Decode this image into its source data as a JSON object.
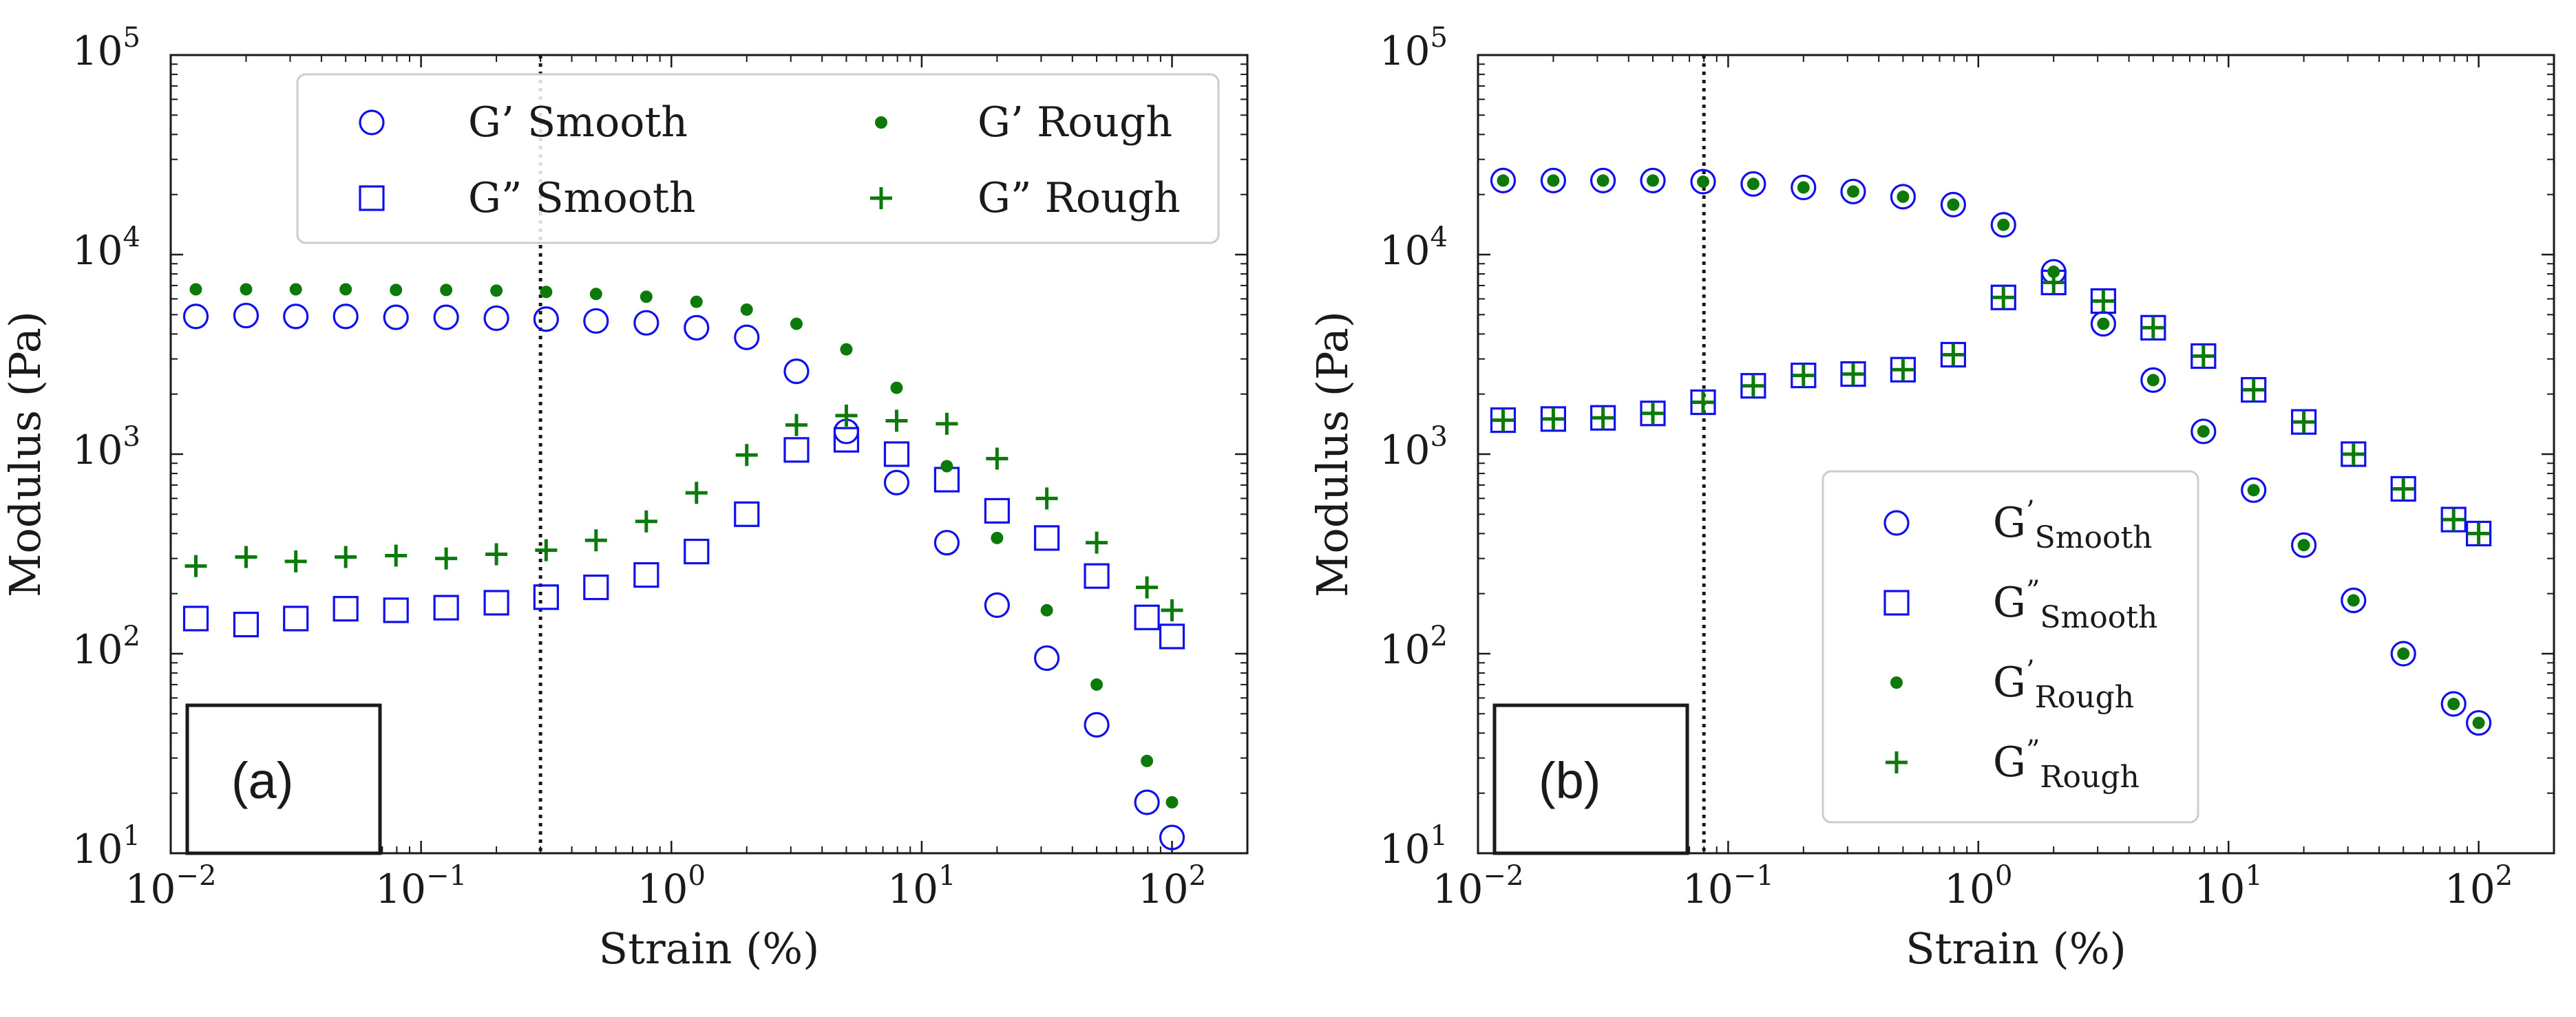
{
  "colors": {
    "smooth": "#1010ee",
    "rough": "#0b7a0b",
    "axis": "#1a1a1a"
  },
  "chart_data": [
    {
      "id": "a",
      "type": "scatter",
      "panel_label": "(a)",
      "xscale": "log",
      "yscale": "log",
      "xlim": [
        0.01,
        200
      ],
      "ylim": [
        10,
        100000
      ],
      "xlabel": "Strain (%)",
      "ylabel": "Modulus (Pa)",
      "x_ticks": [
        {
          "base": "10",
          "exp": "−2",
          "v": 0.01
        },
        {
          "base": "10",
          "exp": "−1",
          "v": 0.1
        },
        {
          "base": "10",
          "exp": "0",
          "v": 1
        },
        {
          "base": "10",
          "exp": "1",
          "v": 10
        },
        {
          "base": "10",
          "exp": "2",
          "v": 100
        }
      ],
      "y_ticks": [
        {
          "base": "10",
          "exp": "1",
          "v": 10
        },
        {
          "base": "10",
          "exp": "2",
          "v": 100
        },
        {
          "base": "10",
          "exp": "3",
          "v": 1000
        },
        {
          "base": "10",
          "exp": "4",
          "v": 10000
        },
        {
          "base": "10",
          "exp": "5",
          "v": 100000
        }
      ],
      "vline_x": 0.3,
      "legend_position": "top-center, 2 columns",
      "legend_style": "plain",
      "series": [
        {
          "name": "G’ Smooth",
          "marker": "circle",
          "color": "smooth",
          "x": [
            0.0126,
            0.02,
            0.0316,
            0.05,
            0.0794,
            0.126,
            0.2,
            0.316,
            0.5,
            0.794,
            1.26,
            2.0,
            3.16,
            5.0,
            7.94,
            12.6,
            20,
            31.6,
            50,
            79.4,
            100
          ],
          "y": [
            4900,
            4950,
            4900,
            4900,
            4850,
            4850,
            4800,
            4750,
            4650,
            4550,
            4300,
            3850,
            2600,
            1300,
            720,
            360,
            175,
            95,
            44,
            18,
            12
          ]
        },
        {
          "name": "G” Smooth",
          "marker": "square",
          "color": "smooth",
          "x": [
            0.0126,
            0.02,
            0.0316,
            0.05,
            0.0794,
            0.126,
            0.2,
            0.316,
            0.5,
            0.794,
            1.26,
            2.0,
            3.16,
            5.0,
            7.94,
            12.6,
            20,
            31.6,
            50,
            79.4,
            100
          ],
          "y": [
            150,
            140,
            150,
            168,
            165,
            170,
            180,
            192,
            215,
            248,
            325,
            500,
            1050,
            1180,
            1000,
            745,
            520,
            380,
            245,
            152,
            122
          ]
        },
        {
          "name": "G’ Rough",
          "marker": "dot",
          "color": "rough",
          "x": [
            0.0126,
            0.02,
            0.0316,
            0.05,
            0.0794,
            0.126,
            0.2,
            0.316,
            0.5,
            0.794,
            1.26,
            2.0,
            3.16,
            5.0,
            7.94,
            12.6,
            20,
            31.6,
            50,
            79.4,
            100
          ],
          "y": [
            6700,
            6700,
            6700,
            6700,
            6650,
            6650,
            6600,
            6500,
            6350,
            6150,
            5800,
            5300,
            4500,
            3350,
            2150,
            870,
            380,
            165,
            70,
            29,
            18
          ]
        },
        {
          "name": "G” Rough",
          "marker": "plus",
          "color": "rough",
          "x": [
            0.0126,
            0.02,
            0.0316,
            0.05,
            0.0794,
            0.126,
            0.2,
            0.316,
            0.5,
            0.794,
            1.26,
            2.0,
            3.16,
            5.0,
            7.94,
            12.6,
            20,
            31.6,
            50,
            79.4,
            100
          ],
          "y": [
            275,
            305,
            290,
            305,
            310,
            300,
            315,
            330,
            370,
            460,
            640,
            990,
            1400,
            1560,
            1470,
            1420,
            950,
            600,
            360,
            215,
            165
          ]
        }
      ]
    },
    {
      "id": "b",
      "type": "scatter",
      "panel_label": "(b)",
      "xscale": "log",
      "yscale": "log",
      "xlim": [
        0.01,
        200
      ],
      "ylim": [
        10,
        100000
      ],
      "xlabel": "Strain (%)",
      "ylabel": "Modulus (Pa)",
      "x_ticks": [
        {
          "base": "10",
          "exp": "−2",
          "v": 0.01
        },
        {
          "base": "10",
          "exp": "−1",
          "v": 0.1
        },
        {
          "base": "10",
          "exp": "0",
          "v": 1
        },
        {
          "base": "10",
          "exp": "1",
          "v": 10
        },
        {
          "base": "10",
          "exp": "2",
          "v": 100
        }
      ],
      "y_ticks": [
        {
          "base": "10",
          "exp": "1",
          "v": 10
        },
        {
          "base": "10",
          "exp": "2",
          "v": 100
        },
        {
          "base": "10",
          "exp": "3",
          "v": 1000
        },
        {
          "base": "10",
          "exp": "4",
          "v": 10000
        },
        {
          "base": "10",
          "exp": "5",
          "v": 100000
        }
      ],
      "vline_x": 0.08,
      "legend_position": "lower-right, 1 column",
      "legend_style": "subscript",
      "series": [
        {
          "name": "G’ Smooth",
          "label_main": "G",
          "label_prime": "’",
          "label_sub": "Smooth",
          "marker": "circle",
          "color": "smooth",
          "x": [
            0.0126,
            0.02,
            0.0316,
            0.05,
            0.0794,
            0.126,
            0.2,
            0.316,
            0.5,
            0.794,
            1.26,
            2.0,
            3.16,
            5.0,
            7.94,
            12.6,
            20,
            31.6,
            50,
            79.4,
            100
          ],
          "y": [
            23500,
            23500,
            23500,
            23500,
            23200,
            22600,
            21700,
            20700,
            19500,
            17800,
            14100,
            8200,
            4500,
            2350,
            1300,
            660,
            350,
            185,
            100,
            56,
            45
          ]
        },
        {
          "name": "G” Smooth",
          "label_main": "G",
          "label_prime": "”",
          "label_sub": "Smooth",
          "marker": "square",
          "color": "smooth",
          "x": [
            0.0126,
            0.02,
            0.0316,
            0.05,
            0.0794,
            0.126,
            0.2,
            0.316,
            0.5,
            0.794,
            1.26,
            2.0,
            3.16,
            5.0,
            7.94,
            12.6,
            20,
            31.6,
            50,
            79.4,
            100
          ],
          "y": [
            1480,
            1500,
            1520,
            1600,
            1820,
            2200,
            2480,
            2520,
            2650,
            3150,
            6100,
            7250,
            5850,
            4300,
            3100,
            2100,
            1450,
            1000,
            670,
            470,
            400
          ]
        },
        {
          "name": "G’ Rough",
          "label_main": "G",
          "label_prime": "’",
          "label_sub": "Rough",
          "marker": "dot",
          "color": "rough",
          "x": [
            0.0126,
            0.02,
            0.0316,
            0.05,
            0.0794,
            0.126,
            0.2,
            0.316,
            0.5,
            0.794,
            1.26,
            2.0,
            3.16,
            5.0,
            7.94,
            12.6,
            20,
            31.6,
            50,
            79.4,
            100
          ],
          "y": [
            23500,
            23500,
            23500,
            23500,
            23200,
            22600,
            21700,
            20700,
            19500,
            17800,
            14100,
            8200,
            4500,
            2350,
            1300,
            660,
            350,
            185,
            100,
            56,
            45
          ]
        },
        {
          "name": "G” Rough",
          "label_main": "G",
          "label_prime": "”",
          "label_sub": "Rough",
          "marker": "plus",
          "color": "rough",
          "x": [
            0.0126,
            0.02,
            0.0316,
            0.05,
            0.0794,
            0.126,
            0.2,
            0.316,
            0.5,
            0.794,
            1.26,
            2.0,
            3.16,
            5.0,
            7.94,
            12.6,
            20,
            31.6,
            50,
            79.4,
            100
          ],
          "y": [
            1480,
            1500,
            1520,
            1600,
            1820,
            2200,
            2480,
            2520,
            2650,
            3150,
            6100,
            7250,
            5850,
            4300,
            3100,
            2100,
            1450,
            1000,
            670,
            470,
            400
          ]
        }
      ]
    }
  ]
}
